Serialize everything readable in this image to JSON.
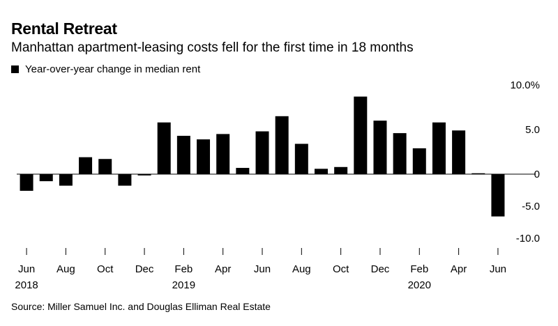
{
  "title": "Rental Retreat",
  "subtitle": "Manhattan apartment-leasing costs fell for the first time in 18 months",
  "legend": {
    "label": "Year-over-year change in median rent",
    "color": "#000000"
  },
  "source": "Source: Miller Samuel Inc. and Douglas Elliman Real Estate",
  "chart_data": {
    "type": "bar",
    "categories": [
      "Jun 2018",
      "Jul 2018",
      "Aug 2018",
      "Sep 2018",
      "Oct 2018",
      "Nov 2018",
      "Dec 2018",
      "Jan 2019",
      "Feb 2019",
      "Mar 2019",
      "Apr 2019",
      "May 2019",
      "Jun 2019",
      "Jul 2019",
      "Aug 2019",
      "Sep 2019",
      "Oct 2019",
      "Nov 2019",
      "Dec 2019",
      "Jan 2020",
      "Feb 2020",
      "Mar 2020",
      "Apr 2020",
      "May 2020",
      "Jun 2020"
    ],
    "series": [
      {
        "name": "Year-over-year change in median rent",
        "color": "#000000",
        "values": [
          -2.6,
          -1.1,
          -1.8,
          1.9,
          1.7,
          -1.8,
          -0.2,
          5.8,
          4.3,
          3.9,
          4.5,
          0.7,
          4.8,
          6.5,
          3.4,
          0.6,
          0.8,
          8.7,
          6.0,
          4.6,
          2.9,
          5.8,
          4.9,
          0.1,
          -6.6
        ]
      }
    ],
    "ylim": [
      -10.0,
      10.0
    ],
    "yticks": [
      {
        "value": 10.0,
        "label": "10.0%"
      },
      {
        "value": 5.0,
        "label": "5.0"
      },
      {
        "value": 0,
        "label": "0"
      },
      {
        "value": -5.0,
        "label": "-5.0"
      },
      {
        "value": -10.0,
        "label": "-10.0"
      }
    ],
    "xtick_labels": [
      {
        "index": 0,
        "month": "Jun",
        "year": "2018"
      },
      {
        "index": 2,
        "month": "Aug",
        "year": ""
      },
      {
        "index": 4,
        "month": "Oct",
        "year": ""
      },
      {
        "index": 6,
        "month": "Dec",
        "year": ""
      },
      {
        "index": 8,
        "month": "Feb",
        "year": "2019"
      },
      {
        "index": 10,
        "month": "Apr",
        "year": ""
      },
      {
        "index": 12,
        "month": "Jun",
        "year": ""
      },
      {
        "index": 14,
        "month": "Aug",
        "year": ""
      },
      {
        "index": 16,
        "month": "Oct",
        "year": ""
      },
      {
        "index": 18,
        "month": "Dec",
        "year": ""
      },
      {
        "index": 20,
        "month": "Feb",
        "year": "2020"
      },
      {
        "index": 22,
        "month": "Apr",
        "year": ""
      },
      {
        "index": 24,
        "month": "Jun",
        "year": ""
      }
    ],
    "xlabel": "",
    "ylabel": "",
    "grid": false,
    "legend_position": "top-left"
  }
}
